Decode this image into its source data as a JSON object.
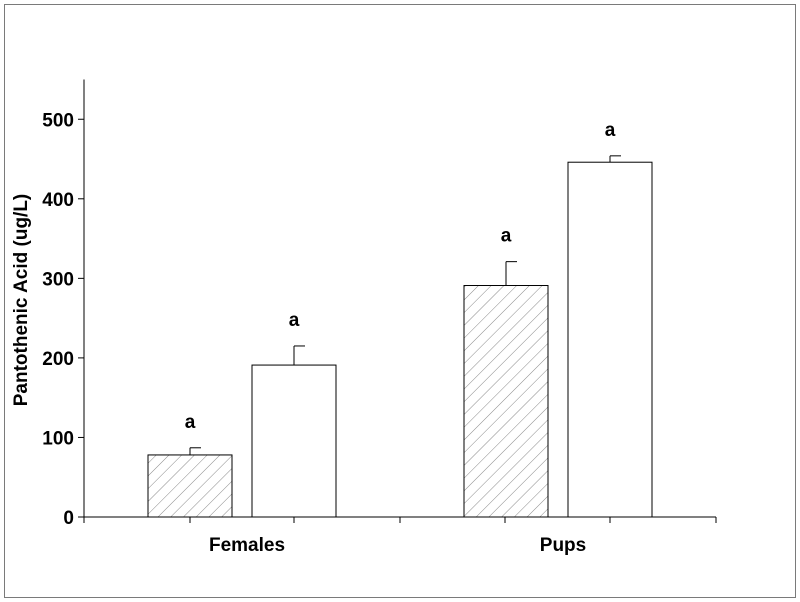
{
  "chart_data": {
    "type": "bar",
    "title": "",
    "xlabel": "",
    "ylabel": "Pantothenic Acid (ug/L)",
    "ylim": [
      0,
      550
    ],
    "yticks": [
      0,
      100,
      200,
      300,
      400,
      500
    ],
    "categories": [
      "Females",
      "Pups"
    ],
    "series": [
      {
        "fill": "hatched",
        "values": [
          78,
          291
        ],
        "errors": [
          9,
          30
        ],
        "annotations": [
          "a",
          "a"
        ]
      },
      {
        "fill": "white",
        "values": [
          191,
          446
        ],
        "errors": [
          24,
          8
        ],
        "annotations": [
          "a",
          "a"
        ]
      }
    ],
    "grid": false,
    "legend": "none"
  }
}
